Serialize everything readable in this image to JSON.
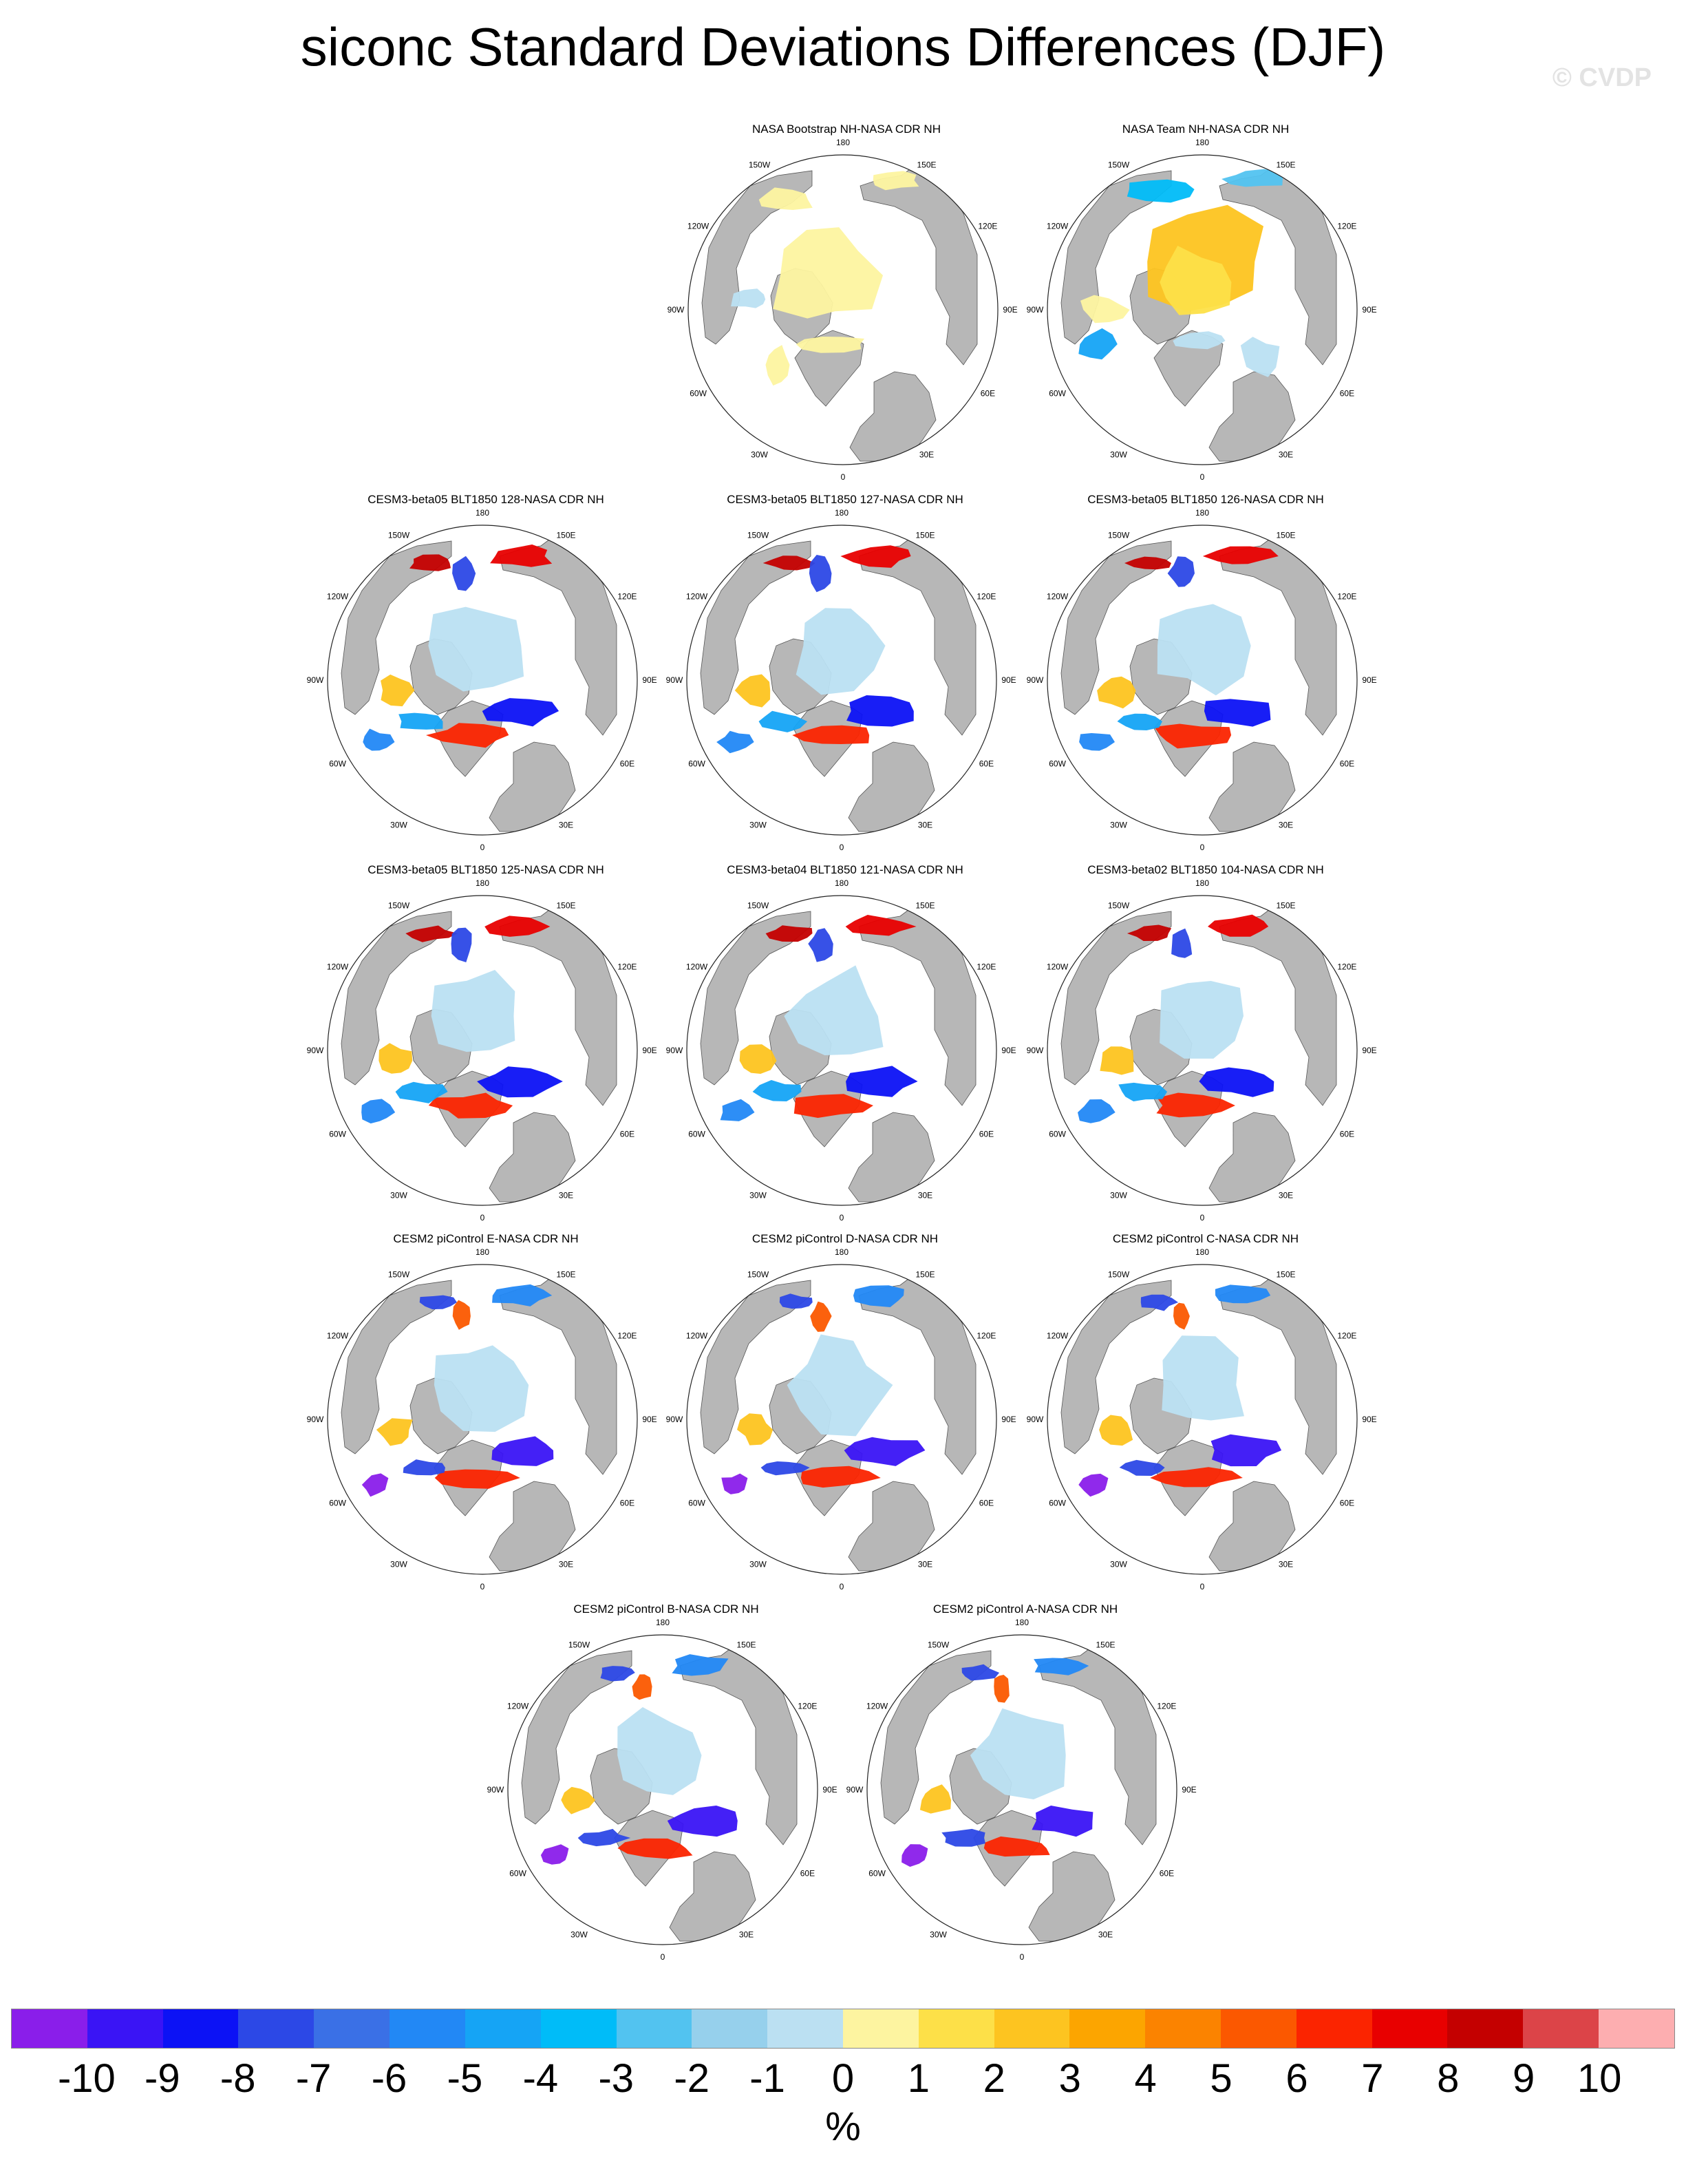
{
  "title": "siconc Standard Deviations Differences (DJF)",
  "watermark": "© CVDP",
  "longitude_labels": [
    "180",
    "150E",
    "120E",
    "90E",
    "60E",
    "30E",
    "0",
    "30W",
    "60W",
    "90W",
    "120W",
    "150W"
  ],
  "colors": {
    "land": "#b7b7b7",
    "ocean": "#ffffff",
    "coast": "#555555"
  },
  "panels": [
    {
      "title": "NASA Bootstrap NH-NASA CDR NH",
      "pattern": "bootstrap"
    },
    {
      "title": "NASA Team NH-NASA CDR NH",
      "pattern": "team"
    },
    {
      "title": "CESM3-beta05 BLT1850 128-NASA CDR NH",
      "pattern": "cesm3"
    },
    {
      "title": "CESM3-beta05 BLT1850 127-NASA CDR NH",
      "pattern": "cesm3"
    },
    {
      "title": "CESM3-beta05 BLT1850 126-NASA CDR NH",
      "pattern": "cesm3"
    },
    {
      "title": "CESM3-beta05 BLT1850 125-NASA CDR NH",
      "pattern": "cesm3"
    },
    {
      "title": "CESM3-beta04 BLT1850 121-NASA CDR NH",
      "pattern": "cesm3"
    },
    {
      "title": "CESM3-beta02 BLT1850 104-NASA CDR NH",
      "pattern": "cesm3"
    },
    {
      "title": "CESM2 piControl E-NASA CDR NH",
      "pattern": "cesm2"
    },
    {
      "title": "CESM2 piControl D-NASA CDR NH",
      "pattern": "cesm2"
    },
    {
      "title": "CESM2 piControl C-NASA CDR NH",
      "pattern": "cesm2"
    },
    {
      "title": "CESM2 piControl B-NASA CDR NH",
      "pattern": "cesm2"
    },
    {
      "title": "CESM2 piControl A-NASA CDR NH",
      "pattern": "cesm2"
    }
  ],
  "colorbar": {
    "units": "%",
    "labels": [
      "-10",
      "-9",
      "-8",
      "-7",
      "-6",
      "-5",
      "-4",
      "-3",
      "-2",
      "-1",
      "0",
      "1",
      "2",
      "3",
      "4",
      "5",
      "6",
      "7",
      "8",
      "9",
      "10"
    ],
    "colors": [
      "#8a1eea",
      "#3a14f5",
      "#0c12f5",
      "#2c48e6",
      "#3a70e6",
      "#2288f5",
      "#15a4f5",
      "#00bcf8",
      "#52c3f0",
      "#96d0ec",
      "#bbe0f2",
      "#fdf4a0",
      "#fde048",
      "#fdc420",
      "#fca500",
      "#fb8300",
      "#fb5800",
      "#fb2400",
      "#e80000",
      "#c40000",
      "#dc4448",
      "#fdaeb0"
    ]
  }
}
